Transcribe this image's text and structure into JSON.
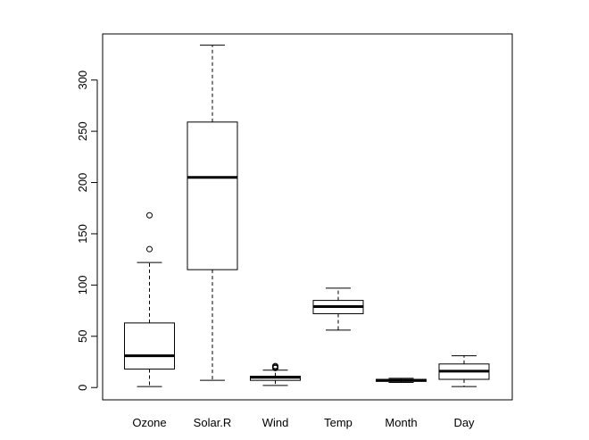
{
  "chart_data": {
    "type": "boxplot",
    "title": "",
    "xlabel": "",
    "ylabel": "",
    "ylim": [
      -12,
      345
    ],
    "yticks": [
      0,
      50,
      100,
      150,
      200,
      250,
      300
    ],
    "grid": false,
    "categories": [
      "Ozone",
      "Solar.R",
      "Wind",
      "Temp",
      "Month",
      "Day"
    ],
    "boxes": [
      {
        "name": "Ozone",
        "whisker_low": 1,
        "q1": 18,
        "median": 31,
        "q3": 63,
        "whisker_high": 122,
        "outliers": [
          135,
          168
        ]
      },
      {
        "name": "Solar.R",
        "whisker_low": 7,
        "q1": 115,
        "median": 205,
        "q3": 259,
        "whisker_high": 334,
        "outliers": []
      },
      {
        "name": "Wind",
        "whisker_low": 2,
        "q1": 7,
        "median": 10,
        "q3": 11,
        "whisker_high": 17,
        "outliers": [
          19,
          20,
          21
        ]
      },
      {
        "name": "Temp",
        "whisker_low": 56,
        "q1": 72,
        "median": 79,
        "q3": 85,
        "whisker_high": 97,
        "outliers": []
      },
      {
        "name": "Month",
        "whisker_low": 5,
        "q1": 6,
        "median": 7,
        "q3": 8,
        "whisker_high": 9,
        "outliers": []
      },
      {
        "name": "Day",
        "whisker_low": 1,
        "q1": 8,
        "median": 16,
        "q3": 23,
        "whisker_high": 31,
        "outliers": []
      }
    ]
  }
}
